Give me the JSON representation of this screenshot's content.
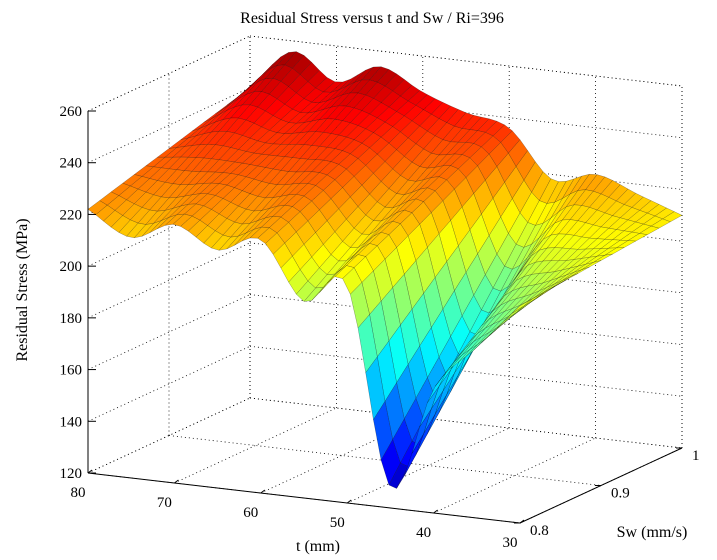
{
  "chart_data": {
    "type": "surface",
    "title": "Residual Stress versus t and Sw / Ri=396",
    "xlabel": "t (mm)",
    "ylabel": "Sw (mm/s)",
    "zlabel": "Residual Stress (MPa)",
    "x_ticks": [
      "80",
      "70",
      "60",
      "50",
      "40",
      "30"
    ],
    "y_ticks": [
      "0.8",
      "0.9",
      "1"
    ],
    "z_ticks": [
      "120",
      "140",
      "160",
      "180",
      "200",
      "220",
      "240",
      "260"
    ],
    "xlim": [
      30,
      80
    ],
    "ylim": [
      0.8,
      1.0
    ],
    "zlim": [
      120,
      260
    ],
    "colormap": "jet",
    "grid": true,
    "surface_samples": {
      "t": [
        80,
        75,
        70,
        65,
        60,
        55,
        50,
        45,
        40,
        35,
        30
      ],
      "Sw": [
        0.8,
        1.0
      ],
      "stress": [
        [
          222,
          213,
          220,
          212,
          218,
          196,
          204,
          128,
          168,
          186,
          204
        ],
        [
          240,
          256,
          246,
          254,
          246,
          240,
          236,
          218,
          222,
          216,
          210
        ]
      ]
    }
  }
}
